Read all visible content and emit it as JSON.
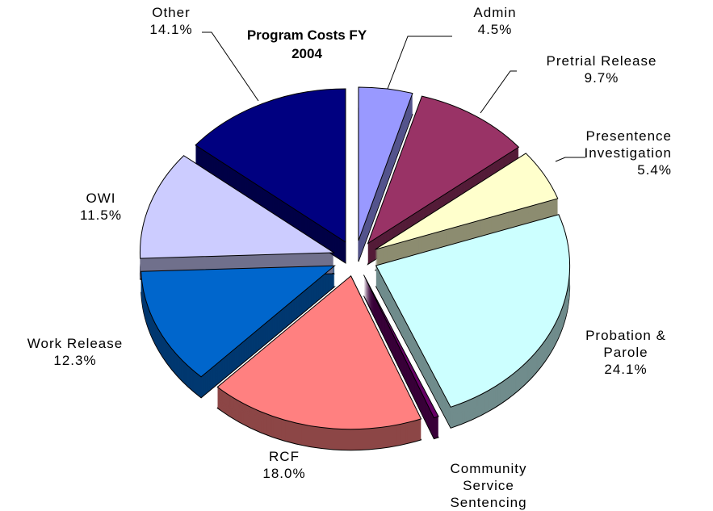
{
  "chart_data": {
    "type": "pie",
    "title": "Program Costs FY 2004",
    "categories": [
      "Admin",
      "Pretrial Release",
      "Presentence Investigation",
      "Probation & Parole",
      "Community Service Sentencing",
      "RCF",
      "Work Release",
      "OWI",
      "Other"
    ],
    "values": [
      4.5,
      9.7,
      5.4,
      24.1,
      0.4,
      18.0,
      12.3,
      11.5,
      14.1
    ],
    "value_labels": [
      "4.5%",
      "9.7%",
      "5.4%",
      "24.1%",
      null,
      "18.0%",
      "12.3%",
      "11.5%",
      "14.1%"
    ],
    "colors": [
      "#9999ff",
      "#993366",
      "#ffffcc",
      "#ccffff",
      "#660066",
      "#ff8080",
      "#0066cc",
      "#ccccff",
      "#000080"
    ]
  }
}
